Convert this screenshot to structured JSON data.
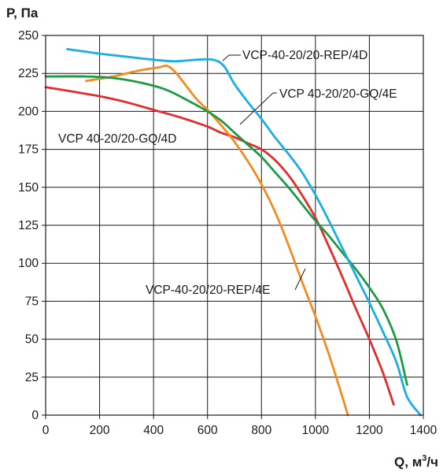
{
  "chart_data": {
    "type": "line",
    "ylabel": "P, Па",
    "xlabel_main": "Q, м",
    "xlabel_sup": "3",
    "xlabel_tail": "/ч",
    "xlim": [
      0,
      1400
    ],
    "ylim": [
      0,
      250
    ],
    "x_ticks": [
      0,
      200,
      400,
      600,
      800,
      1000,
      1200,
      1400
    ],
    "y_ticks": [
      0,
      25,
      50,
      75,
      100,
      125,
      150,
      175,
      200,
      225,
      250
    ],
    "grid": true,
    "series": [
      {
        "name": "VCP-40-20/20-REP/4D",
        "color": "#1aaee3",
        "points": [
          [
            80,
            241
          ],
          [
            200,
            238
          ],
          [
            300,
            236
          ],
          [
            400,
            234
          ],
          [
            480,
            233
          ],
          [
            560,
            234
          ],
          [
            620,
            234
          ],
          [
            660,
            230
          ],
          [
            700,
            218
          ],
          [
            750,
            206
          ],
          [
            800,
            195
          ],
          [
            850,
            183
          ],
          [
            900,
            172
          ],
          [
            950,
            160
          ],
          [
            1000,
            145
          ],
          [
            1050,
            128
          ],
          [
            1100,
            110
          ],
          [
            1150,
            92
          ],
          [
            1200,
            74
          ],
          [
            1250,
            55
          ],
          [
            1300,
            35
          ],
          [
            1340,
            12
          ],
          [
            1390,
            0
          ]
        ]
      },
      {
        "name": "VCP-40-20/20-REP/4E",
        "color": "#f38b1f",
        "points": [
          [
            150,
            220
          ],
          [
            250,
            223
          ],
          [
            350,
            227
          ],
          [
            420,
            229
          ],
          [
            450,
            230
          ],
          [
            480,
            226
          ],
          [
            520,
            217
          ],
          [
            560,
            208
          ],
          [
            600,
            201
          ],
          [
            650,
            191
          ],
          [
            700,
            180
          ],
          [
            750,
            167
          ],
          [
            800,
            152
          ],
          [
            850,
            134
          ],
          [
            900,
            112
          ],
          [
            950,
            88
          ],
          [
            1000,
            65
          ],
          [
            1050,
            40
          ],
          [
            1100,
            12
          ],
          [
            1120,
            0
          ]
        ]
      },
      {
        "name": "VCP 40-20/20-GQ/4D",
        "color": "#e32c2c",
        "points": [
          [
            0,
            216
          ],
          [
            100,
            213
          ],
          [
            200,
            210
          ],
          [
            300,
            206
          ],
          [
            400,
            201
          ],
          [
            500,
            196
          ],
          [
            600,
            190
          ],
          [
            650,
            186
          ],
          [
            700,
            183
          ],
          [
            750,
            179
          ],
          [
            800,
            175
          ],
          [
            850,
            168
          ],
          [
            900,
            158
          ],
          [
            950,
            145
          ],
          [
            1000,
            130
          ],
          [
            1050,
            111
          ],
          [
            1100,
            91
          ],
          [
            1150,
            70
          ],
          [
            1200,
            50
          ],
          [
            1250,
            28
          ],
          [
            1290,
            7
          ]
        ]
      },
      {
        "name": "VCP 40-20/20-GQ/4E",
        "color": "#1c9a46",
        "points": [
          [
            0,
            223
          ],
          [
            150,
            223
          ],
          [
            250,
            222
          ],
          [
            350,
            219
          ],
          [
            450,
            214
          ],
          [
            550,
            205
          ],
          [
            600,
            200
          ],
          [
            650,
            194
          ],
          [
            700,
            186
          ],
          [
            750,
            178
          ],
          [
            800,
            170
          ],
          [
            850,
            160
          ],
          [
            900,
            150
          ],
          [
            950,
            139
          ],
          [
            1000,
            128
          ],
          [
            1050,
            118
          ],
          [
            1100,
            107
          ],
          [
            1150,
            96
          ],
          [
            1200,
            84
          ],
          [
            1250,
            70
          ],
          [
            1300,
            49
          ],
          [
            1340,
            20
          ]
        ]
      }
    ],
    "annotations": [
      {
        "text": "VCP-40-20/20-REP/4D",
        "series": "VCP-40-20/20-REP/4D"
      },
      {
        "text": "VCP 40-20/20-GQ/4E",
        "series": "VCP 40-20/20-GQ/4E"
      },
      {
        "text": "VCP 40-20/20-GQ/4D",
        "series": "VCP 40-20/20-GQ/4D"
      },
      {
        "text": "VCP-40-20/20-REP/4E",
        "series": "VCP-40-20/20-REP/4E"
      }
    ]
  }
}
